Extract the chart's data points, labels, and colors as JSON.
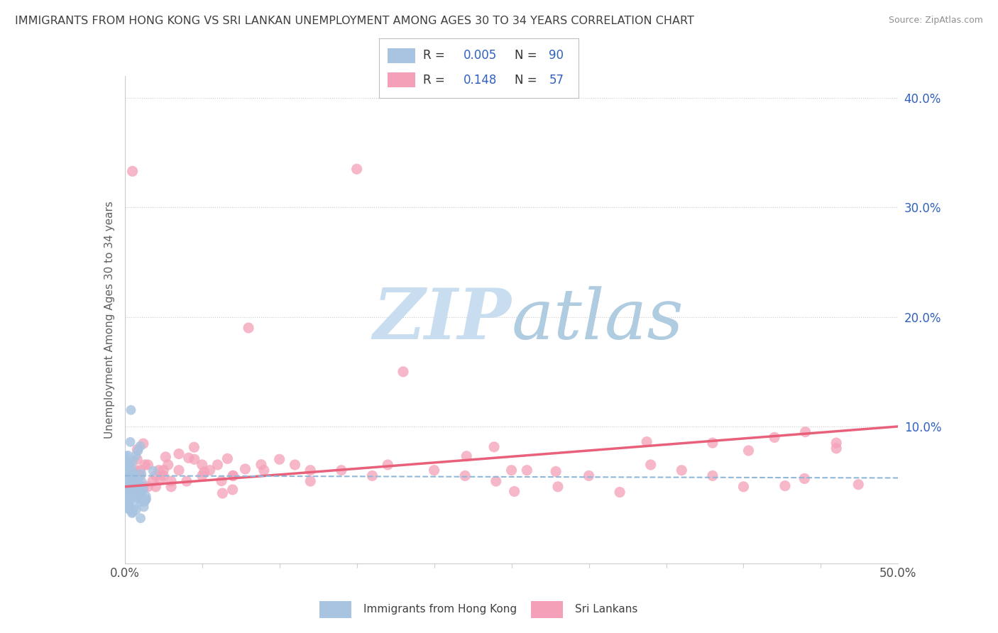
{
  "title": "IMMIGRANTS FROM HONG KONG VS SRI LANKAN UNEMPLOYMENT AMONG AGES 30 TO 34 YEARS CORRELATION CHART",
  "source": "Source: ZipAtlas.com",
  "ylabel": "Unemployment Among Ages 30 to 34 years",
  "right_yticks": [
    "40.0%",
    "30.0%",
    "20.0%",
    "10.0%"
  ],
  "right_ytick_vals": [
    0.4,
    0.3,
    0.2,
    0.1
  ],
  "xlim": [
    0.0,
    0.5
  ],
  "ylim": [
    -0.025,
    0.42
  ],
  "hk_color": "#a8c4e0",
  "sl_color": "#f4a0b8",
  "trend_hk_color": "#90b8d8",
  "trend_sl_color": "#e8607a",
  "watermark_zip_color": "#c8ddf0",
  "watermark_atlas_color": "#b0cce0",
  "grid_color": "#cccccc",
  "title_color": "#404040",
  "source_color": "#909090",
  "legend_color": "#3060c0",
  "right_axis_color": "#3060c0",
  "sl_scatter_x": [
    0.003,
    0.005,
    0.007,
    0.008,
    0.01,
    0.012,
    0.015,
    0.018,
    0.02,
    0.022,
    0.025,
    0.028,
    0.03,
    0.035,
    0.04,
    0.045,
    0.05,
    0.055,
    0.06,
    0.07,
    0.08,
    0.09,
    0.1,
    0.11,
    0.12,
    0.14,
    0.16,
    0.18,
    0.2,
    0.22,
    0.24,
    0.26,
    0.28,
    0.3,
    0.32,
    0.34,
    0.36,
    0.38,
    0.4,
    0.42,
    0.44,
    0.46,
    0.015,
    0.025,
    0.035,
    0.05,
    0.07,
    0.12,
    0.17,
    0.25,
    0.38,
    0.46,
    0.005,
    0.01,
    0.02,
    0.03,
    0.15
  ],
  "sl_scatter_y": [
    0.04,
    0.05,
    0.06,
    0.07,
    0.055,
    0.045,
    0.065,
    0.05,
    0.045,
    0.06,
    0.055,
    0.065,
    0.045,
    0.06,
    0.05,
    0.07,
    0.055,
    0.06,
    0.065,
    0.055,
    0.19,
    0.06,
    0.07,
    0.065,
    0.05,
    0.06,
    0.055,
    0.15,
    0.06,
    0.055,
    0.05,
    0.06,
    0.045,
    0.055,
    0.04,
    0.065,
    0.06,
    0.055,
    0.045,
    0.09,
    0.095,
    0.08,
    0.045,
    0.06,
    0.075,
    0.065,
    0.055,
    0.06,
    0.065,
    0.06,
    0.085,
    0.085,
    0.333,
    0.06,
    0.055,
    0.05,
    0.335
  ],
  "hk_trend_x0": 0.0,
  "hk_trend_x1": 0.5,
  "hk_trend_y0": 0.055,
  "hk_trend_y1": 0.053,
  "sl_trend_x0": 0.0,
  "sl_trend_x1": 0.5,
  "sl_trend_y0": 0.045,
  "sl_trend_y1": 0.1
}
